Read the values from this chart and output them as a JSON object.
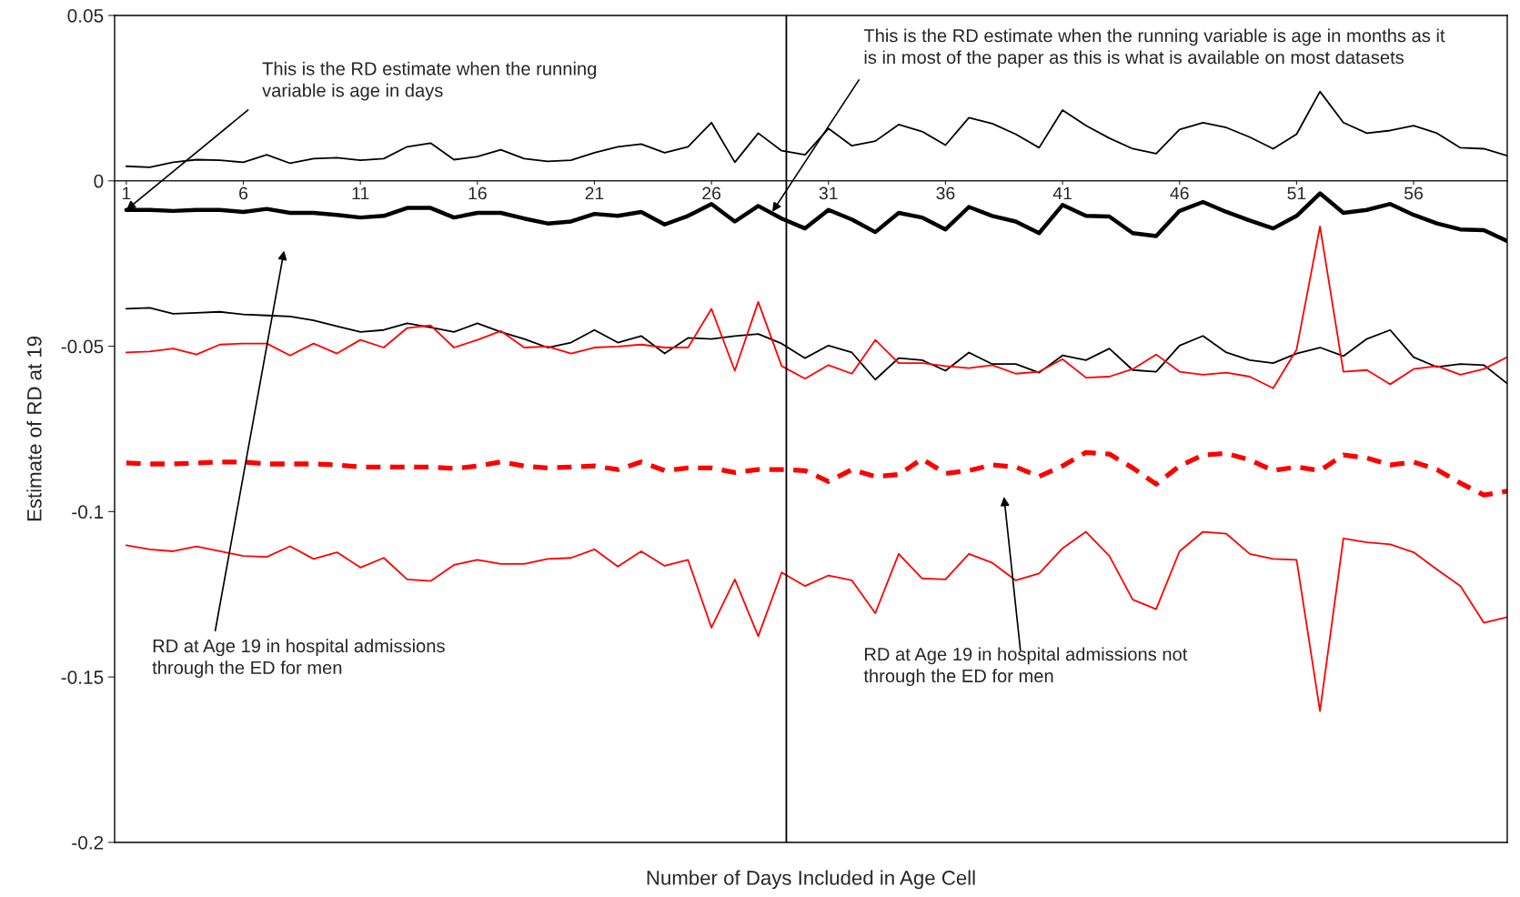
{
  "chart_data": {
    "type": "line",
    "xlabel": "Number of Days Included in Age Cell",
    "ylabel": "Estimate of RD at 19",
    "x": [
      1,
      2,
      3,
      4,
      5,
      6,
      7,
      8,
      9,
      10,
      11,
      12,
      13,
      14,
      15,
      16,
      17,
      18,
      19,
      20,
      21,
      22,
      23,
      24,
      25,
      26,
      27,
      28,
      29,
      30,
      31,
      32,
      33,
      34,
      35,
      36,
      37,
      38,
      39,
      40,
      41,
      42,
      43,
      44,
      45,
      46,
      47,
      48,
      49,
      50,
      51,
      52,
      53,
      54,
      55,
      56,
      57,
      58,
      59,
      60
    ],
    "xlim": [
      0.5,
      60
    ],
    "xticks": [
      1,
      6,
      11,
      16,
      21,
      26,
      31,
      36,
      41,
      46,
      51,
      56
    ],
    "ylim": [
      -0.2,
      0.05
    ],
    "yticks": [
      -0.2,
      -0.15,
      -0.1,
      -0.05,
      0,
      0.05
    ],
    "grid": false,
    "legend": false,
    "series": [
      {
        "color": "#000000",
        "line_style": "solid",
        "values": [
          0.0044,
          0.0041,
          0.0056,
          0.0064,
          0.0062,
          0.0056,
          0.0079,
          0.0053,
          0.0067,
          0.007,
          0.0062,
          0.0067,
          0.0103,
          0.0114,
          0.0064,
          0.0073,
          0.0094,
          0.0067,
          0.0059,
          0.0062,
          0.0085,
          0.0103,
          0.0111,
          0.0085,
          0.0103,
          0.0176,
          0.0056,
          0.0144,
          0.0091,
          0.0079,
          0.0158,
          0.0106,
          0.012,
          0.017,
          0.0149,
          0.0108,
          0.0191,
          0.0173,
          0.0141,
          0.01,
          0.0214,
          0.0167,
          0.0129,
          0.0097,
          0.0082,
          0.0155,
          0.0176,
          0.0161,
          0.0132,
          0.0097,
          0.0141,
          0.027,
          0.0176,
          0.0144,
          0.0152,
          0.0167,
          0.0144,
          0.01,
          0.0097,
          0.0076
        ]
      },
      {
        "color": "#000000",
        "line_style": "solid",
        "values": [
          -0.0088,
          -0.0088,
          -0.0091,
          -0.0088,
          -0.0088,
          -0.0094,
          -0.0085,
          -0.0097,
          -0.0097,
          -0.0103,
          -0.0111,
          -0.0106,
          -0.0082,
          -0.0082,
          -0.0111,
          -0.0097,
          -0.0097,
          -0.0114,
          -0.0129,
          -0.0123,
          -0.01,
          -0.0106,
          -0.0094,
          -0.0132,
          -0.0106,
          -0.007,
          -0.0123,
          -0.0076,
          -0.0114,
          -0.0144,
          -0.0088,
          -0.0117,
          -0.0155,
          -0.0097,
          -0.0111,
          -0.0147,
          -0.0079,
          -0.0106,
          -0.0123,
          -0.0158,
          -0.0073,
          -0.0106,
          -0.0108,
          -0.0158,
          -0.0167,
          -0.0091,
          -0.0064,
          -0.0094,
          -0.012,
          -0.0144,
          -0.0106,
          -0.0038,
          -0.0097,
          -0.0088,
          -0.007,
          -0.0103,
          -0.0129,
          -0.0147,
          -0.0149,
          -0.0182
        ]
      },
      {
        "color": "#000000",
        "line_style": "solid",
        "values": [
          -0.0387,
          -0.0384,
          -0.0402,
          -0.0399,
          -0.0396,
          -0.0404,
          -0.0407,
          -0.041,
          -0.0422,
          -0.044,
          -0.0457,
          -0.0451,
          -0.0431,
          -0.0443,
          -0.0457,
          -0.0431,
          -0.0457,
          -0.0478,
          -0.0504,
          -0.0489,
          -0.0451,
          -0.0489,
          -0.0469,
          -0.0522,
          -0.0475,
          -0.0478,
          -0.0469,
          -0.0463,
          -0.0492,
          -0.0536,
          -0.0498,
          -0.0519,
          -0.0601,
          -0.0536,
          -0.0542,
          -0.0574,
          -0.0519,
          -0.0554,
          -0.0554,
          -0.058,
          -0.0528,
          -0.0542,
          -0.0507,
          -0.0572,
          -0.0577,
          -0.0498,
          -0.0469,
          -0.0519,
          -0.0542,
          -0.0551,
          -0.0522,
          -0.0504,
          -0.053,
          -0.0478,
          -0.0451,
          -0.0533,
          -0.0563,
          -0.0554,
          -0.0557,
          -0.0613
        ]
      },
      {
        "color": "#ff0000",
        "line_style": "solid",
        "values": [
          -0.0519,
          -0.0516,
          -0.0507,
          -0.0525,
          -0.0495,
          -0.0492,
          -0.0492,
          -0.0528,
          -0.0492,
          -0.0522,
          -0.0481,
          -0.0504,
          -0.0445,
          -0.0437,
          -0.0504,
          -0.0481,
          -0.0454,
          -0.0504,
          -0.0501,
          -0.0522,
          -0.0504,
          -0.0501,
          -0.0495,
          -0.0504,
          -0.0504,
          -0.0387,
          -0.0574,
          -0.0366,
          -0.056,
          -0.0598,
          -0.0557,
          -0.0583,
          -0.0481,
          -0.0551,
          -0.0551,
          -0.056,
          -0.0566,
          -0.0557,
          -0.0583,
          -0.0577,
          -0.0539,
          -0.0595,
          -0.0592,
          -0.0569,
          -0.0525,
          -0.0577,
          -0.0586,
          -0.058,
          -0.0592,
          -0.0627,
          -0.051,
          -0.0138,
          -0.0577,
          -0.0572,
          -0.0615,
          -0.0569,
          -0.056,
          -0.0586,
          -0.0569,
          -0.0533
        ]
      },
      {
        "color": "#ff0000",
        "line_style": "dashed",
        "values": [
          -0.0853,
          -0.0856,
          -0.0856,
          -0.0853,
          -0.085,
          -0.085,
          -0.0856,
          -0.0856,
          -0.0856,
          -0.0859,
          -0.0865,
          -0.0865,
          -0.0865,
          -0.0865,
          -0.087,
          -0.0862,
          -0.085,
          -0.0862,
          -0.0868,
          -0.0865,
          -0.0862,
          -0.0873,
          -0.085,
          -0.0876,
          -0.0868,
          -0.0868,
          -0.0882,
          -0.0873,
          -0.0873,
          -0.0876,
          -0.0909,
          -0.0873,
          -0.0894,
          -0.0888,
          -0.0841,
          -0.0885,
          -0.0876,
          -0.0859,
          -0.0865,
          -0.0894,
          -0.0862,
          -0.0821,
          -0.0826,
          -0.0868,
          -0.0917,
          -0.0862,
          -0.0829,
          -0.0824,
          -0.0844,
          -0.0876,
          -0.0865,
          -0.0876,
          -0.0829,
          -0.0838,
          -0.0859,
          -0.085,
          -0.0873,
          -0.0914,
          -0.095,
          -0.0938
        ]
      },
      {
        "color": "#ff0000",
        "line_style": "solid",
        "values": [
          -0.1102,
          -0.1114,
          -0.112,
          -0.1105,
          -0.112,
          -0.1134,
          -0.1137,
          -0.1105,
          -0.1143,
          -0.1123,
          -0.1169,
          -0.114,
          -0.1205,
          -0.121,
          -0.1161,
          -0.1146,
          -0.1158,
          -0.1158,
          -0.1143,
          -0.114,
          -0.1114,
          -0.1166,
          -0.112,
          -0.1164,
          -0.1146,
          -0.1351,
          -0.1205,
          -0.1377,
          -0.1184,
          -0.1225,
          -0.1193,
          -0.1208,
          -0.1307,
          -0.1128,
          -0.1202,
          -0.1205,
          -0.1128,
          -0.1155,
          -0.1208,
          -0.1187,
          -0.1111,
          -0.1061,
          -0.1134,
          -0.1266,
          -0.1295,
          -0.112,
          -0.1061,
          -0.1067,
          -0.1128,
          -0.1143,
          -0.1146,
          -0.1603,
          -0.1081,
          -0.1093,
          -0.1099,
          -0.1123,
          -0.1175,
          -0.1225,
          -0.1336,
          -0.1319
        ]
      }
    ],
    "ref_lines": [
      {
        "axis": "x",
        "value": 29.2,
        "color": "#000000"
      }
    ],
    "annotations": [
      {
        "text": "This is the RD estimate when the running\nvariable is age in days",
        "x": 1,
        "y": -0.0088
      },
      {
        "text": "This is the RD estimate when the running variable is age in months as it\nis in most of the paper as this is what is available on most datasets",
        "x": 28.6,
        "y": -0.0094
      },
      "RD at Age 19 in hospital admissions\nthrough the ED for men",
      "RD at Age 19 in hospital admissions not\nthrough the ED for men"
    ]
  }
}
